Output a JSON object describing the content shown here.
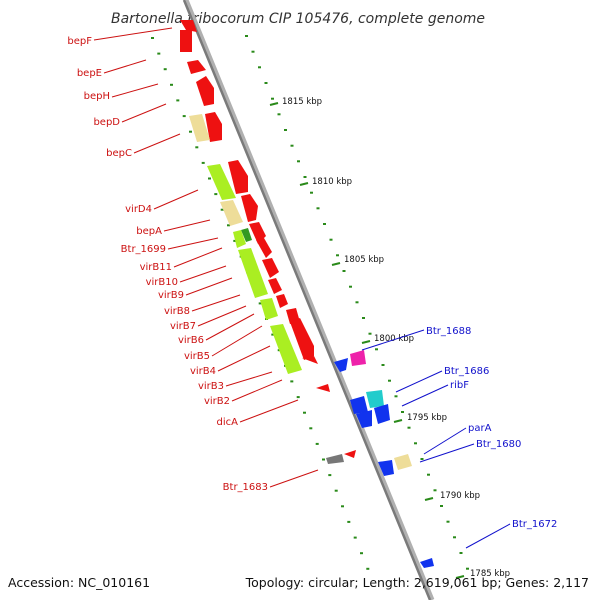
{
  "title": "Bartonella tribocorum CIP 105476, complete genome",
  "footer": {
    "accession": "Accession: NC_010161",
    "summary": "Topology: circular; Length: 2,619,061 bp; Genes: 2,117"
  },
  "colors": {
    "backbone": "#909090",
    "ruler_tick": "#2a8a1a",
    "label_red": "#cc1111",
    "label_blue": "#1111cc",
    "gene_red": "#ee1111",
    "gene_green": "#aaee22",
    "gene_darkgreen": "#339922",
    "gene_tan": "#eedd99",
    "gene_blue": "#1133ee",
    "gene_cyan": "#22cccc",
    "gene_magenta": "#ee22aa",
    "gene_gray": "#777777"
  },
  "scale": [
    {
      "label": "1815 kbp"
    },
    {
      "label": "1810 kbp"
    },
    {
      "label": "1805 kbp"
    },
    {
      "label": "1800 kbp"
    },
    {
      "label": "1795 kbp"
    },
    {
      "label": "1790 kbp"
    },
    {
      "label": "1785 kbp"
    }
  ],
  "left_labels": [
    {
      "text": "bepF"
    },
    {
      "text": "bepE"
    },
    {
      "text": "bepH"
    },
    {
      "text": "bepD"
    },
    {
      "text": "bepC"
    },
    {
      "text": "virD4"
    },
    {
      "text": "bepA"
    },
    {
      "text": "Btr_1699"
    },
    {
      "text": "virB11"
    },
    {
      "text": "virB10"
    },
    {
      "text": "virB9"
    },
    {
      "text": "virB8"
    },
    {
      "text": "virB7"
    },
    {
      "text": "virB6"
    },
    {
      "text": "virB5"
    },
    {
      "text": "virB4"
    },
    {
      "text": "virB3"
    },
    {
      "text": "virB2"
    },
    {
      "text": "dicA"
    },
    {
      "text": "Btr_1683"
    }
  ],
  "right_labels": [
    {
      "text": "Btr_1688"
    },
    {
      "text": "Btr_1686"
    },
    {
      "text": "ribF"
    },
    {
      "text": "parA"
    },
    {
      "text": "Btr_1680"
    },
    {
      "text": "Btr_1672"
    }
  ]
}
